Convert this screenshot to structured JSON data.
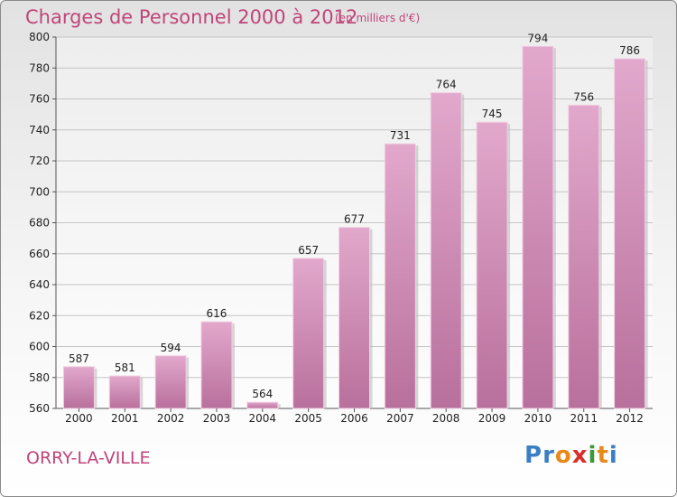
{
  "title": "Charges de Personnel 2000 à 2012",
  "subtitle": "(en milliers d'€)",
  "commune": "ORRY-LA-VILLE",
  "logo": {
    "letters": [
      "P",
      "r",
      "o",
      "x",
      "i",
      "t",
      "i"
    ],
    "colors": [
      "#3a7fc4",
      "#3a7fc4",
      "#e88a1a",
      "#d8302a",
      "#3a9a3a",
      "#e88a1a",
      "#3a7fc4"
    ]
  },
  "colors": {
    "bar_top": "#e2a8cc",
    "bar_bottom": "#b8709c",
    "accent": "#c0457a"
  },
  "chart_data": {
    "type": "bar",
    "categories": [
      "2000",
      "2001",
      "2002",
      "2003",
      "2004",
      "2005",
      "2006",
      "2007",
      "2008",
      "2009",
      "2010",
      "2011",
      "2012"
    ],
    "values": [
      587,
      581,
      594,
      616,
      564,
      657,
      677,
      731,
      764,
      745,
      794,
      756,
      786
    ],
    "ylim": [
      560,
      800
    ],
    "yticks": [
      560,
      580,
      600,
      620,
      640,
      660,
      680,
      700,
      720,
      740,
      760,
      780,
      800
    ],
    "grid": true
  }
}
